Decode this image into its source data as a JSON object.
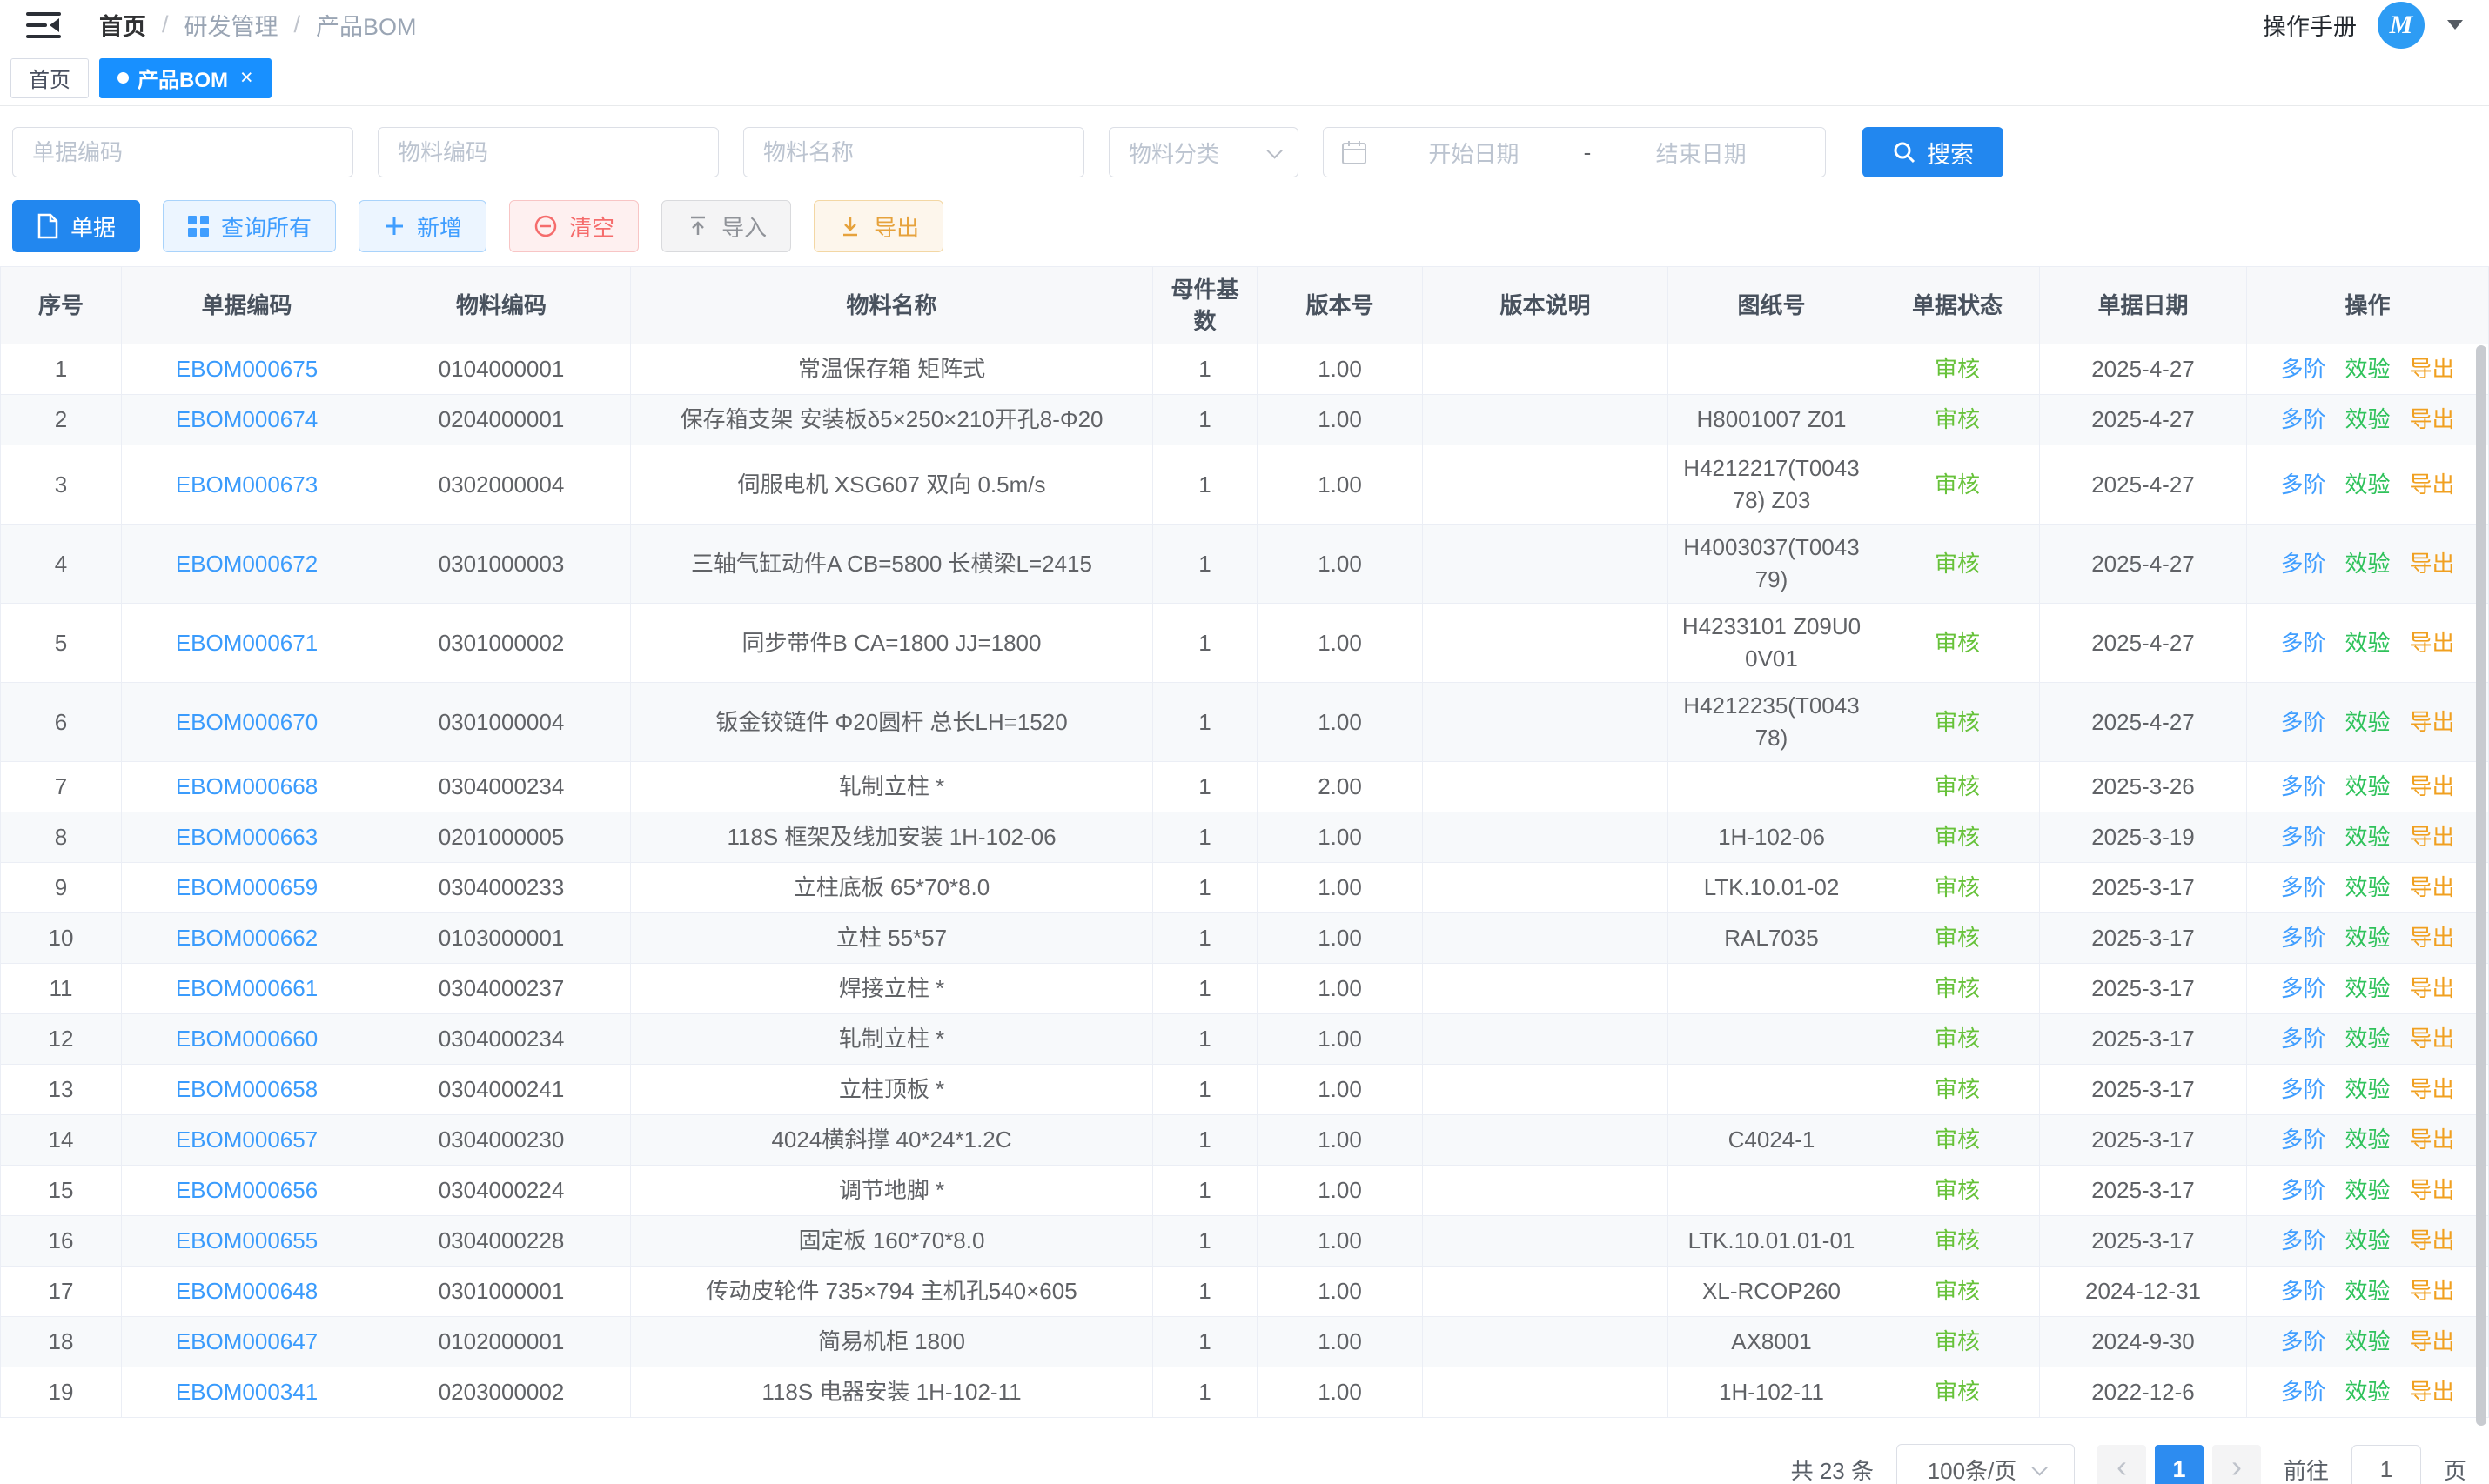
{
  "header": {
    "breadcrumb": [
      "首页",
      "研发管理",
      "产品BOM"
    ],
    "manual_label": "操作手册",
    "avatar_letter": "M"
  },
  "tabs": {
    "home": "首页",
    "active": "产品BOM",
    "close_glyph": "×"
  },
  "filters": {
    "doc_code_placeholder": "单据编码",
    "material_code_placeholder": "物料编码",
    "material_name_placeholder": "物料名称",
    "material_category_placeholder": "物料分类",
    "start_date_placeholder": "开始日期",
    "date_separator": "-",
    "end_date_placeholder": "结束日期",
    "search_label": "搜索"
  },
  "toolbar": {
    "doc_label": "单据",
    "query_all_label": "查询所有",
    "add_label": "新增",
    "clear_label": "清空",
    "import_label": "导入",
    "export_label": "导出"
  },
  "table": {
    "headers": [
      "序号",
      "单据编码",
      "物料编码",
      "物料名称",
      "母件基数",
      "版本号",
      "版本说明",
      "图纸号",
      "单据状态",
      "单据日期",
      "操作"
    ],
    "action_labels": [
      "多阶",
      "效验",
      "导出"
    ],
    "status_color": "#67c23a",
    "rows": [
      {
        "no": "1",
        "doc_code": "EBOM000675",
        "material_code": "0104000001",
        "material_name": "常温保存箱 矩阵式",
        "base_qty": "1",
        "version": "1.00",
        "version_desc": "",
        "drawing_no": "",
        "status": "审核",
        "date": "2025-4-27"
      },
      {
        "no": "2",
        "doc_code": "EBOM000674",
        "material_code": "0204000001",
        "material_name": "保存箱支架 安装板δ5×250×210开孔8-Φ20",
        "base_qty": "1",
        "version": "1.00",
        "version_desc": "",
        "drawing_no": "H8001007 Z01",
        "status": "审核",
        "date": "2025-4-27"
      },
      {
        "no": "3",
        "doc_code": "EBOM000673",
        "material_code": "0302000004",
        "material_name": "伺服电机 XSG607 双向 0.5m/s",
        "base_qty": "1",
        "version": "1.00",
        "version_desc": "",
        "drawing_no": "H4212217(T004378) Z03",
        "status": "审核",
        "date": "2025-4-27"
      },
      {
        "no": "4",
        "doc_code": "EBOM000672",
        "material_code": "0301000003",
        "material_name": "三轴气缸动件A CB=5800 长横梁L=2415",
        "base_qty": "1",
        "version": "1.00",
        "version_desc": "",
        "drawing_no": "H4003037(T004379)",
        "status": "审核",
        "date": "2025-4-27"
      },
      {
        "no": "5",
        "doc_code": "EBOM000671",
        "material_code": "0301000002",
        "material_name": "同步带件B CA=1800 JJ=1800",
        "base_qty": "1",
        "version": "1.00",
        "version_desc": "",
        "drawing_no": "H4233101 Z09U00V01",
        "status": "审核",
        "date": "2025-4-27"
      },
      {
        "no": "6",
        "doc_code": "EBOM000670",
        "material_code": "0301000004",
        "material_name": "钣金铰链件 Φ20圆杆 总长LH=1520",
        "base_qty": "1",
        "version": "1.00",
        "version_desc": "",
        "drawing_no": "H4212235(T004378)",
        "status": "审核",
        "date": "2025-4-27"
      },
      {
        "no": "7",
        "doc_code": "EBOM000668",
        "material_code": "0304000234",
        "material_name": "轧制立柱 *",
        "base_qty": "1",
        "version": "2.00",
        "version_desc": "",
        "drawing_no": "",
        "status": "审核",
        "date": "2025-3-26"
      },
      {
        "no": "8",
        "doc_code": "EBOM000663",
        "material_code": "0201000005",
        "material_name": "118S 框架及线加安装 1H-102-06",
        "base_qty": "1",
        "version": "1.00",
        "version_desc": "",
        "drawing_no": "1H-102-06",
        "status": "审核",
        "date": "2025-3-19"
      },
      {
        "no": "9",
        "doc_code": "EBOM000659",
        "material_code": "0304000233",
        "material_name": "立柱底板 65*70*8.0",
        "base_qty": "1",
        "version": "1.00",
        "version_desc": "",
        "drawing_no": "LTK.10.01-02",
        "status": "审核",
        "date": "2025-3-17"
      },
      {
        "no": "10",
        "doc_code": "EBOM000662",
        "material_code": "0103000001",
        "material_name": "立柱 55*57",
        "base_qty": "1",
        "version": "1.00",
        "version_desc": "",
        "drawing_no": "RAL7035",
        "status": "审核",
        "date": "2025-3-17"
      },
      {
        "no": "11",
        "doc_code": "EBOM000661",
        "material_code": "0304000237",
        "material_name": "焊接立柱 *",
        "base_qty": "1",
        "version": "1.00",
        "version_desc": "",
        "drawing_no": "",
        "status": "审核",
        "date": "2025-3-17"
      },
      {
        "no": "12",
        "doc_code": "EBOM000660",
        "material_code": "0304000234",
        "material_name": "轧制立柱 *",
        "base_qty": "1",
        "version": "1.00",
        "version_desc": "",
        "drawing_no": "",
        "status": "审核",
        "date": "2025-3-17"
      },
      {
        "no": "13",
        "doc_code": "EBOM000658",
        "material_code": "0304000241",
        "material_name": "立柱顶板 *",
        "base_qty": "1",
        "version": "1.00",
        "version_desc": "",
        "drawing_no": "",
        "status": "审核",
        "date": "2025-3-17"
      },
      {
        "no": "14",
        "doc_code": "EBOM000657",
        "material_code": "0304000230",
        "material_name": "4024横斜撑 40*24*1.2C",
        "base_qty": "1",
        "version": "1.00",
        "version_desc": "",
        "drawing_no": "C4024-1",
        "status": "审核",
        "date": "2025-3-17"
      },
      {
        "no": "15",
        "doc_code": "EBOM000656",
        "material_code": "0304000224",
        "material_name": "调节地脚 *",
        "base_qty": "1",
        "version": "1.00",
        "version_desc": "",
        "drawing_no": "",
        "status": "审核",
        "date": "2025-3-17"
      },
      {
        "no": "16",
        "doc_code": "EBOM000655",
        "material_code": "0304000228",
        "material_name": "固定板 160*70*8.0",
        "base_qty": "1",
        "version": "1.00",
        "version_desc": "",
        "drawing_no": "LTK.10.01.01-01",
        "status": "审核",
        "date": "2025-3-17"
      },
      {
        "no": "17",
        "doc_code": "EBOM000648",
        "material_code": "0301000001",
        "material_name": "传动皮轮件 735×794 主机孔540×605",
        "base_qty": "1",
        "version": "1.00",
        "version_desc": "",
        "drawing_no": "XL-RCOP260",
        "status": "审核",
        "date": "2024-12-31"
      },
      {
        "no": "18",
        "doc_code": "EBOM000647",
        "material_code": "0102000001",
        "material_name": "简易机柜 1800",
        "base_qty": "1",
        "version": "1.00",
        "version_desc": "",
        "drawing_no": "AX8001",
        "status": "审核",
        "date": "2024-9-30"
      },
      {
        "no": "19",
        "doc_code": "EBOM000341",
        "material_code": "0203000002",
        "material_name": "118S 电器安装 1H-102-11",
        "base_qty": "1",
        "version": "1.00",
        "version_desc": "",
        "drawing_no": "1H-102-11",
        "status": "审核",
        "date": "2022-12-6"
      }
    ]
  },
  "pagination": {
    "total_label": "共 23 条",
    "page_size": "100条/页",
    "prev_glyph": "‹",
    "current_page": "1",
    "next_glyph": "›",
    "goto_label": "前往",
    "goto_value": "1",
    "page_unit": "页"
  }
}
